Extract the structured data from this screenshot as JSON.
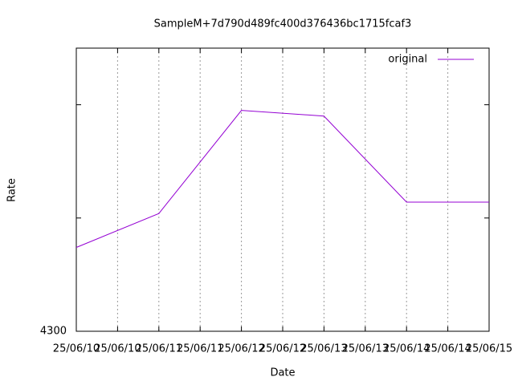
{
  "chart_data": {
    "type": "line",
    "title": "SampleM+7d790d489fc400d376436bc1715fcaf3",
    "x_label": "Date",
    "y_label": "Rate",
    "x": [
      10,
      11,
      12,
      13,
      14,
      15
    ],
    "series": [
      {
        "name": "original",
        "color": "#9400d3",
        "values": [
          4300.74,
          4301.04,
          4301.95,
          4301.9,
          4301.14,
          4301.14
        ]
      }
    ],
    "xlim": [
      10,
      15
    ],
    "xticks": [
      {
        "value": 10,
        "label": "25/06/10"
      },
      {
        "value": 10.5,
        "label": "25/06/10"
      },
      {
        "value": 11,
        "label": "25/06/11"
      },
      {
        "value": 11.5,
        "label": "25/06/11"
      },
      {
        "value": 12,
        "label": "25/06/12"
      },
      {
        "value": 12.5,
        "label": "25/06/12"
      },
      {
        "value": 13,
        "label": "25/06/13"
      },
      {
        "value": 13.5,
        "label": "25/06/13"
      },
      {
        "value": 14,
        "label": "25/06/14"
      },
      {
        "value": 14.5,
        "label": "25/06/14"
      },
      {
        "value": 15,
        "label": "25/06/15"
      }
    ],
    "ylim": [
      4300,
      4302.5
    ],
    "yticks": [
      4300
    ],
    "minor_yticks": [
      4301,
      4302
    ],
    "grid": "x",
    "legend": "top-right"
  }
}
